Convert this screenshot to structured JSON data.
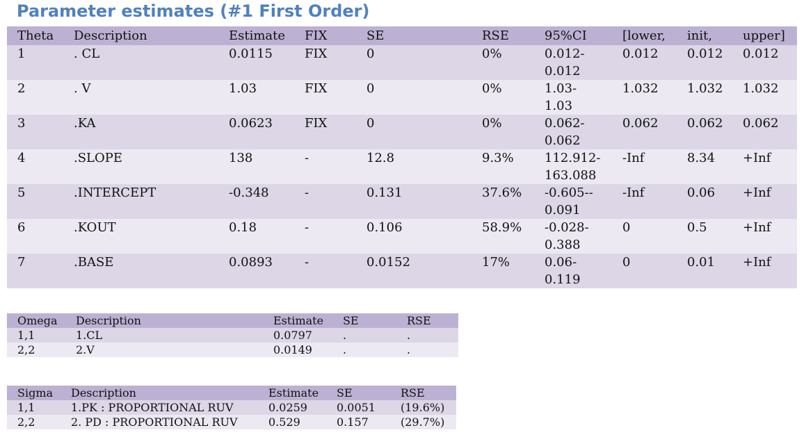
{
  "title": "Parameter estimates (#1 First Order)",
  "theta_table": {
    "headers": [
      "Theta",
      "Description",
      "Estimate",
      "FIX",
      "SE",
      "RSE",
      "95%CI",
      "[lower,",
      "init,",
      "upper]"
    ],
    "rows": [
      [
        "1",
        ". CL",
        "0.0115",
        "FIX",
        "0",
        "0%",
        "0.012-",
        "0.012",
        "0.012",
        "0.012",
        "0.012"
      ],
      [
        "2",
        ". V",
        "1.03",
        "FIX",
        "0",
        "0%",
        "1.03-",
        "1.03",
        "1.032",
        "1.032",
        "1.032"
      ],
      [
        "3",
        ".KA",
        "0.0623",
        "FIX",
        "0",
        "0%",
        "0.062-",
        "0.062",
        "0.062",
        "0.062",
        "0.062"
      ],
      [
        "4",
        ".SLOPE",
        "138",
        "-",
        "12.8",
        "9.3%",
        "112.912-",
        "163.088",
        "-Inf",
        "8.34",
        "+Inf"
      ],
      [
        "5",
        ".INTERCEPT",
        "-0.348",
        "-",
        "0.131",
        "37.6%",
        "-0.605--",
        "0.091",
        "-Inf",
        "0.06",
        "+Inf"
      ],
      [
        "6",
        ".KOUT",
        "0.18",
        "-",
        "0.106",
        "58.9%",
        "-0.028-",
        "0.388",
        "0",
        "0.5",
        "+Inf"
      ],
      [
        "7",
        ".BASE",
        "0.0893",
        "-",
        "0.0152",
        "17%",
        "0.06-",
        "0.119",
        "0",
        "0.01",
        "+Inf"
      ]
    ]
  },
  "omega_table": {
    "headers": [
      "Omega",
      "Description",
      "Estimate",
      "SE",
      "RSE"
    ],
    "rows": [
      [
        "1,1",
        "1.CL",
        "0.0797",
        ".",
        "."
      ],
      [
        "2,2",
        "2.V",
        "0.0149",
        ".",
        "."
      ]
    ]
  },
  "sigma_table": {
    "headers": [
      "Sigma",
      "Description",
      "Estimate",
      "SE",
      "RSE"
    ],
    "rows": [
      [
        "1,1",
        "1.PK : PROPORTIONAL RUV",
        "0.0259",
        "0.0051",
        "(19.6%)"
      ],
      [
        "2,2",
        "2. PD : PROPORTIONAL RUV",
        "0.529",
        "0.157",
        "(29.7%)"
      ]
    ]
  }
}
